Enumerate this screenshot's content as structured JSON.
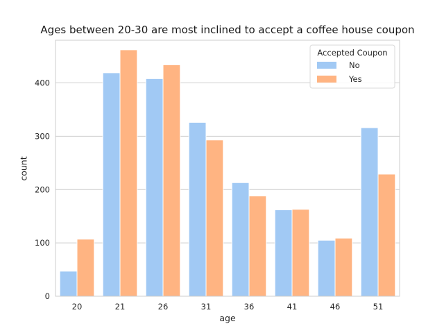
{
  "chart_data": {
    "type": "bar",
    "title": "Ages between 20-30 are most inclined to accept a coffee house coupon",
    "xlabel": "age",
    "ylabel": "count",
    "categories": [
      "20",
      "21",
      "26",
      "31",
      "36",
      "41",
      "46",
      "51"
    ],
    "series": [
      {
        "name": "No",
        "color": "#a1c9f4",
        "values": [
          47,
          419,
          408,
          326,
          213,
          162,
          105,
          316
        ]
      },
      {
        "name": "Yes",
        "color": "#ffb482",
        "values": [
          107,
          462,
          434,
          293,
          188,
          163,
          109,
          229
        ]
      }
    ],
    "ylim": [
      0,
      480
    ],
    "yticks": [
      0,
      100,
      200,
      300,
      400
    ],
    "grid": true,
    "legend": {
      "title": "Accepted Coupon",
      "placement": "top-right"
    }
  }
}
